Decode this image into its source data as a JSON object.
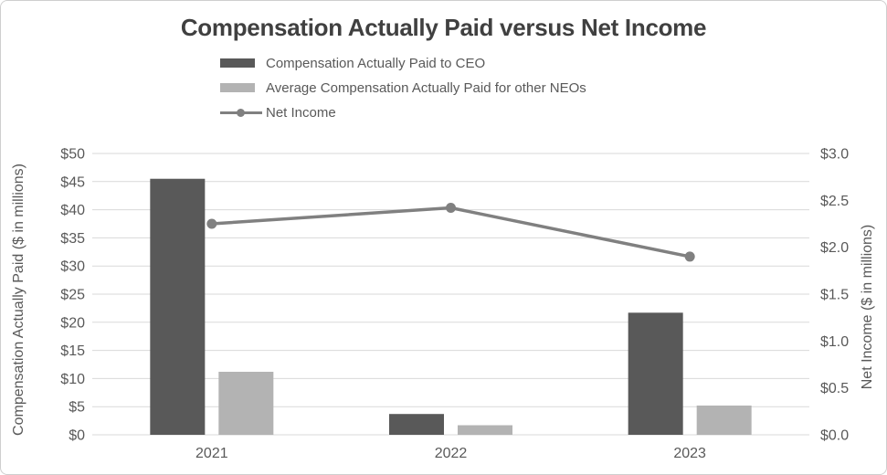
{
  "chart_data": {
    "type": "combo",
    "subtype": "grouped-bar-with-line",
    "title": "Compensation Actually Paid versus Net Income",
    "categories": [
      "2021",
      "2022",
      "2023"
    ],
    "series": [
      {
        "name": "Compensation Actually Paid to CEO",
        "kind": "bar",
        "axis": "left",
        "color": "#595959",
        "values": [
          45.5,
          3.7,
          21.7
        ]
      },
      {
        "name": "Average Compensation Actually Paid for other NEOs",
        "kind": "bar",
        "axis": "left",
        "color": "#b3b3b3",
        "values": [
          11.2,
          1.7,
          5.2
        ]
      },
      {
        "name": "Net Income",
        "kind": "line",
        "axis": "right",
        "color": "#808080",
        "values": [
          2.25,
          2.42,
          1.9
        ]
      }
    ],
    "left_axis": {
      "label": "Compensation Actually Paid ($ in millions)",
      "min": 0,
      "max": 50,
      "step": 5,
      "ticks": [
        "$0",
        "$5",
        "$10",
        "$15",
        "$20",
        "$25",
        "$30",
        "$35",
        "$40",
        "$45",
        "$50"
      ]
    },
    "right_axis": {
      "label": "Net Income ($ in millions)",
      "min": 0,
      "max": 3,
      "step": 0.5,
      "ticks": [
        "$0.0",
        "$0.5",
        "$1.0",
        "$1.5",
        "$2.0",
        "$2.5",
        "$3.0"
      ]
    },
    "grid": "horizontal",
    "legend_position": "top-left",
    "colors": {
      "gridline": "#d9d9d9",
      "axis_text": "#595959",
      "title_text": "#404040",
      "border": "#cfcfcf"
    }
  }
}
